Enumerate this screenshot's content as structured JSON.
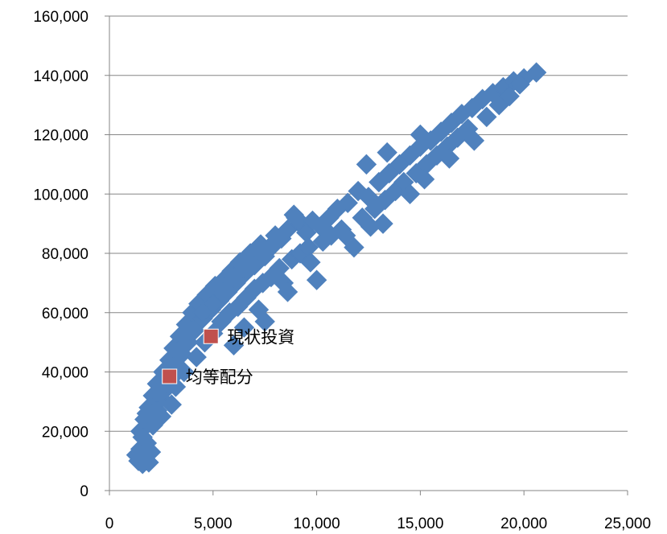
{
  "chart_data": {
    "type": "scatter",
    "title": "",
    "xlabel": "",
    "ylabel": "",
    "xlim": [
      0,
      25000
    ],
    "ylim": [
      0,
      160000
    ],
    "x_ticks": [
      0,
      5000,
      10000,
      15000,
      20000,
      25000
    ],
    "x_tick_labels": [
      "0",
      "5,000",
      "10,000",
      "15,000",
      "20,000",
      "25,000"
    ],
    "y_ticks": [
      0,
      20000,
      40000,
      60000,
      80000,
      100000,
      120000,
      140000,
      160000
    ],
    "y_tick_labels": [
      "0",
      "20,000",
      "40,000",
      "60,000",
      "80,000",
      "100,000",
      "120,000",
      "140,000",
      "160,000"
    ],
    "grid": {
      "horizontal": true,
      "vertical": false
    },
    "legend": "none",
    "series": [
      {
        "marker": "diamond",
        "color": "#4F81BD",
        "points": [
          [
            1300,
            12000
          ],
          [
            1400,
            10000
          ],
          [
            1500,
            14000
          ],
          [
            1600,
            9000
          ],
          [
            1700,
            11000
          ],
          [
            1800,
            16000
          ],
          [
            1900,
            9500
          ],
          [
            2000,
            13000
          ],
          [
            1500,
            20000
          ],
          [
            1700,
            24000
          ],
          [
            1900,
            28000
          ],
          [
            2100,
            22000
          ],
          [
            2100,
            32000
          ],
          [
            2300,
            27000
          ],
          [
            2300,
            36000
          ],
          [
            2500,
            31000
          ],
          [
            2600,
            40000
          ],
          [
            2700,
            34000
          ],
          [
            2900,
            44000
          ],
          [
            3000,
            38000
          ],
          [
            3100,
            48000
          ],
          [
            3300,
            42000
          ],
          [
            3400,
            52000
          ],
          [
            3500,
            46000
          ],
          [
            3700,
            56000
          ],
          [
            3800,
            50000
          ],
          [
            4000,
            60000
          ],
          [
            4100,
            54000
          ],
          [
            4300,
            63000
          ],
          [
            4500,
            58000
          ],
          [
            4700,
            66000
          ],
          [
            4900,
            61000
          ],
          [
            5100,
            69000
          ],
          [
            5300,
            64000
          ],
          [
            5500,
            71000
          ],
          [
            5700,
            67000
          ],
          [
            5900,
            74000
          ],
          [
            6100,
            70000
          ],
          [
            6300,
            77000
          ],
          [
            6500,
            73000
          ],
          [
            6800,
            80000
          ],
          [
            7000,
            76000
          ],
          [
            7300,
            83000
          ],
          [
            7500,
            79000
          ],
          [
            7800,
            82000
          ],
          [
            8000,
            86000
          ],
          [
            8300,
            85000
          ],
          [
            8600,
            88000
          ],
          [
            8900,
            93000
          ],
          [
            9200,
            90000
          ],
          [
            9500,
            87000
          ],
          [
            9800,
            91000
          ],
          [
            10200,
            89000
          ],
          [
            10600,
            92000
          ],
          [
            11000,
            95000
          ],
          [
            11500,
            97000
          ],
          [
            12000,
            101000
          ],
          [
            12400,
            110000
          ],
          [
            12500,
            99000
          ],
          [
            13000,
            104000
          ],
          [
            13400,
            114000
          ],
          [
            13500,
            107000
          ],
          [
            14000,
            110000
          ],
          [
            14500,
            113000
          ],
          [
            15000,
            116000
          ],
          [
            15000,
            120000
          ],
          [
            15500,
            118000
          ],
          [
            16000,
            121000
          ],
          [
            16500,
            124000
          ],
          [
            17000,
            127000
          ],
          [
            17500,
            129000
          ],
          [
            18000,
            132000
          ],
          [
            18500,
            134000
          ],
          [
            19000,
            136000
          ],
          [
            19500,
            138000
          ],
          [
            20000,
            139000
          ],
          [
            20600,
            141000
          ],
          [
            2500,
            25000
          ],
          [
            3000,
            29000
          ],
          [
            3200,
            35000
          ],
          [
            3600,
            40000
          ],
          [
            4200,
            45000
          ],
          [
            4600,
            50000
          ],
          [
            5000,
            53000
          ],
          [
            5400,
            57000
          ],
          [
            5800,
            60000
          ],
          [
            6200,
            62000
          ],
          [
            6600,
            65000
          ],
          [
            7000,
            68000
          ],
          [
            7400,
            70000
          ],
          [
            7800,
            72000
          ],
          [
            7500,
            57000
          ],
          [
            8200,
            75000
          ],
          [
            8400,
            70000
          ],
          [
            8800,
            78000
          ],
          [
            9200,
            80000
          ],
          [
            9600,
            82000
          ],
          [
            10000,
            71000
          ],
          [
            10300,
            84000
          ],
          [
            10700,
            86000
          ],
          [
            11200,
            88000
          ],
          [
            11800,
            82000
          ],
          [
            12200,
            92000
          ],
          [
            12800,
            95000
          ],
          [
            13300,
            98000
          ],
          [
            13800,
            101000
          ],
          [
            14200,
            104000
          ],
          [
            14800,
            107000
          ],
          [
            15300,
            110000
          ],
          [
            15800,
            113000
          ],
          [
            16300,
            116000
          ],
          [
            16800,
            119000
          ],
          [
            17300,
            122000
          ],
          [
            6000,
            49000
          ],
          [
            6500,
            55000
          ],
          [
            7200,
            61000
          ],
          [
            8600,
            67000
          ],
          [
            9700,
            77000
          ],
          [
            11400,
            86000
          ],
          [
            12600,
            89000
          ],
          [
            13200,
            90000
          ],
          [
            14500,
            100000
          ],
          [
            15200,
            105000
          ],
          [
            16400,
            112000
          ],
          [
            17600,
            118000
          ],
          [
            18200,
            126000
          ],
          [
            18800,
            130000
          ],
          [
            19300,
            133000
          ],
          [
            19800,
            137000
          ],
          [
            9000,
            92000
          ],
          [
            8000,
            84000
          ],
          [
            7200,
            81000
          ],
          [
            6600,
            76000
          ],
          [
            6000,
            72000
          ],
          [
            5500,
            67000
          ],
          [
            5000,
            63000
          ],
          [
            4500,
            60000
          ],
          [
            3900,
            54000
          ],
          [
            3300,
            47000
          ],
          [
            2800,
            41000
          ],
          [
            2300,
            33000
          ],
          [
            1800,
            26000
          ],
          [
            1600,
            18000
          ]
        ]
      },
      {
        "marker": "square",
        "color": "#C0504D",
        "points": [
          [
            4900,
            52000
          ],
          [
            2900,
            38500
          ]
        ],
        "labels": [
          "現状投資",
          "均等配分"
        ]
      }
    ]
  }
}
